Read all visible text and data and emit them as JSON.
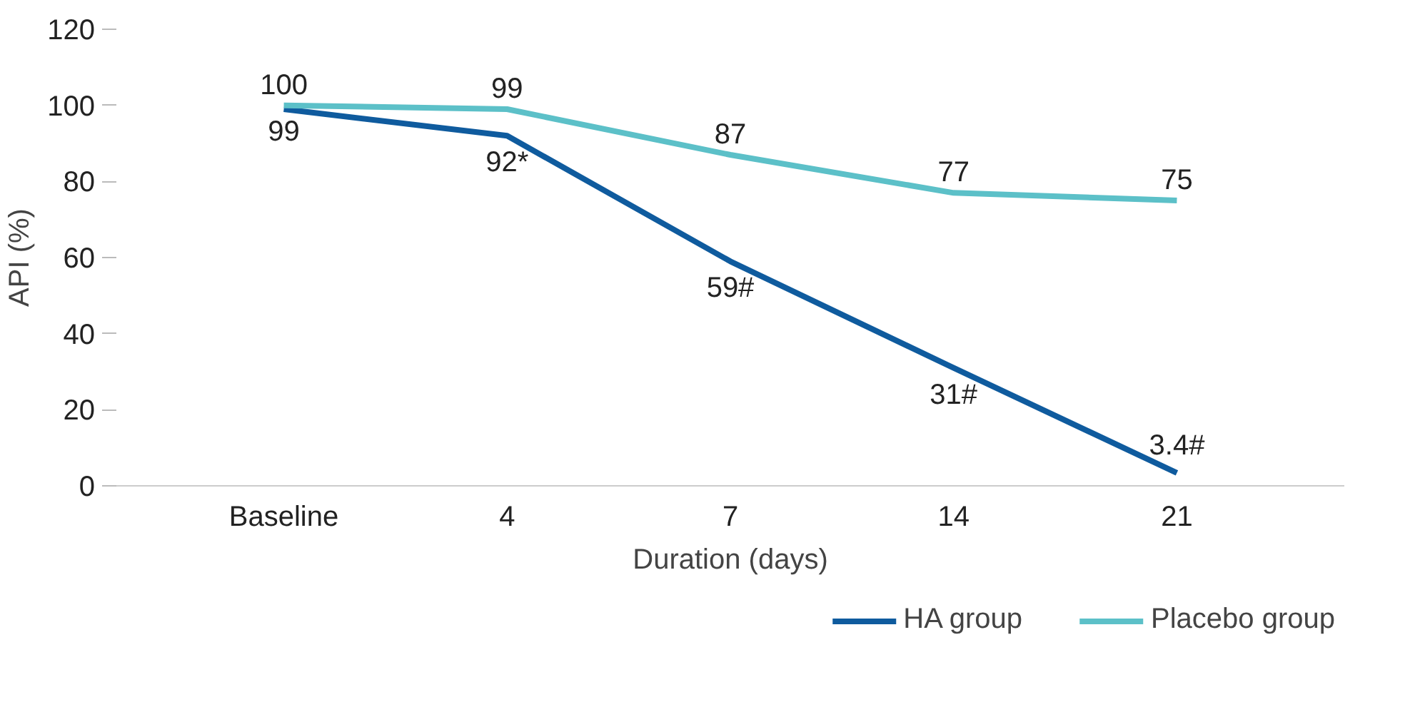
{
  "chart_data": {
    "type": "line",
    "xlabel": "Duration (days)",
    "ylabel": "API (%)",
    "categories": [
      "Baseline",
      "4",
      "7",
      "14",
      "21"
    ],
    "ylim": [
      0,
      120
    ],
    "yticks": [
      0,
      20,
      40,
      60,
      80,
      100,
      120
    ],
    "grid": false,
    "legend": "bottom right",
    "marker": "none",
    "line_style": "solid",
    "series": [
      {
        "name": "HA group",
        "color": "#0f5b9e",
        "values": [
          99,
          92,
          59,
          31,
          3.4
        ],
        "value_labels": [
          "99",
          "92*",
          "59#",
          "31#",
          "3.4#"
        ]
      },
      {
        "name": "Placebo group",
        "color": "#5cc0c8",
        "values": [
          100,
          99,
          87,
          77,
          75
        ],
        "value_labels": [
          "100",
          "99",
          "87",
          "77",
          "75"
        ]
      }
    ]
  }
}
